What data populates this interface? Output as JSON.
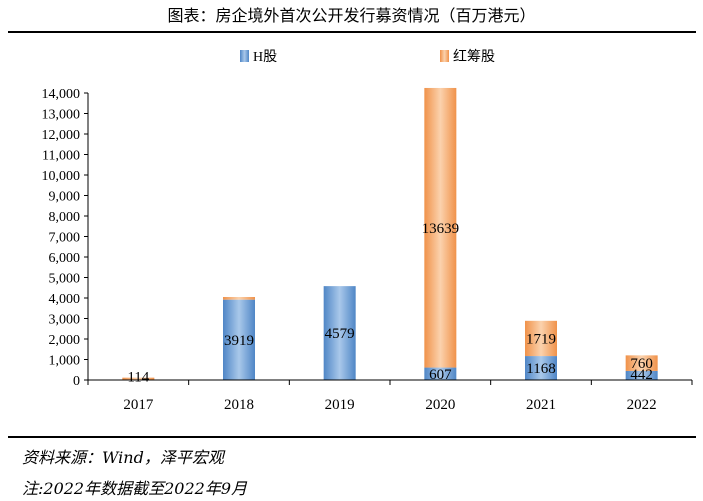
{
  "title": "图表：房企境外首次公开发行募资情况（百万港元）",
  "source": "资料来源：Wind，泽平宏观",
  "note": "注:2022年数据截至2022年9月",
  "colors": {
    "h_share": "#4f86c6",
    "h_share_light": "#a9c8ea",
    "red_chip": "#f0924a",
    "red_chip_light": "#fbd2ad"
  },
  "chart_data": {
    "type": "bar",
    "stacked": true,
    "categories": [
      "2017",
      "2018",
      "2019",
      "2020",
      "2021",
      "2022"
    ],
    "series": [
      {
        "name": "H股",
        "values": [
          0,
          3919,
          4579,
          607,
          1168,
          442
        ]
      },
      {
        "name": "红筹股",
        "values": [
          114,
          130,
          0,
          13639,
          1719,
          760
        ]
      }
    ],
    "data_labels": {
      "H股": [
        "",
        "3919",
        "4579",
        "607",
        "1168",
        "442"
      ],
      "红筹股": [
        "114",
        "",
        "",
        "13639",
        "1719",
        "760"
      ]
    },
    "yticks": [
      "0",
      "1,000",
      "2,000",
      "3,000",
      "4,000",
      "5,000",
      "6,000",
      "7,000",
      "8,000",
      "9,000",
      "10,000",
      "11,000",
      "12,000",
      "13,000",
      "14,000"
    ],
    "ylim": [
      0,
      14000
    ],
    "legend_position": "top"
  }
}
